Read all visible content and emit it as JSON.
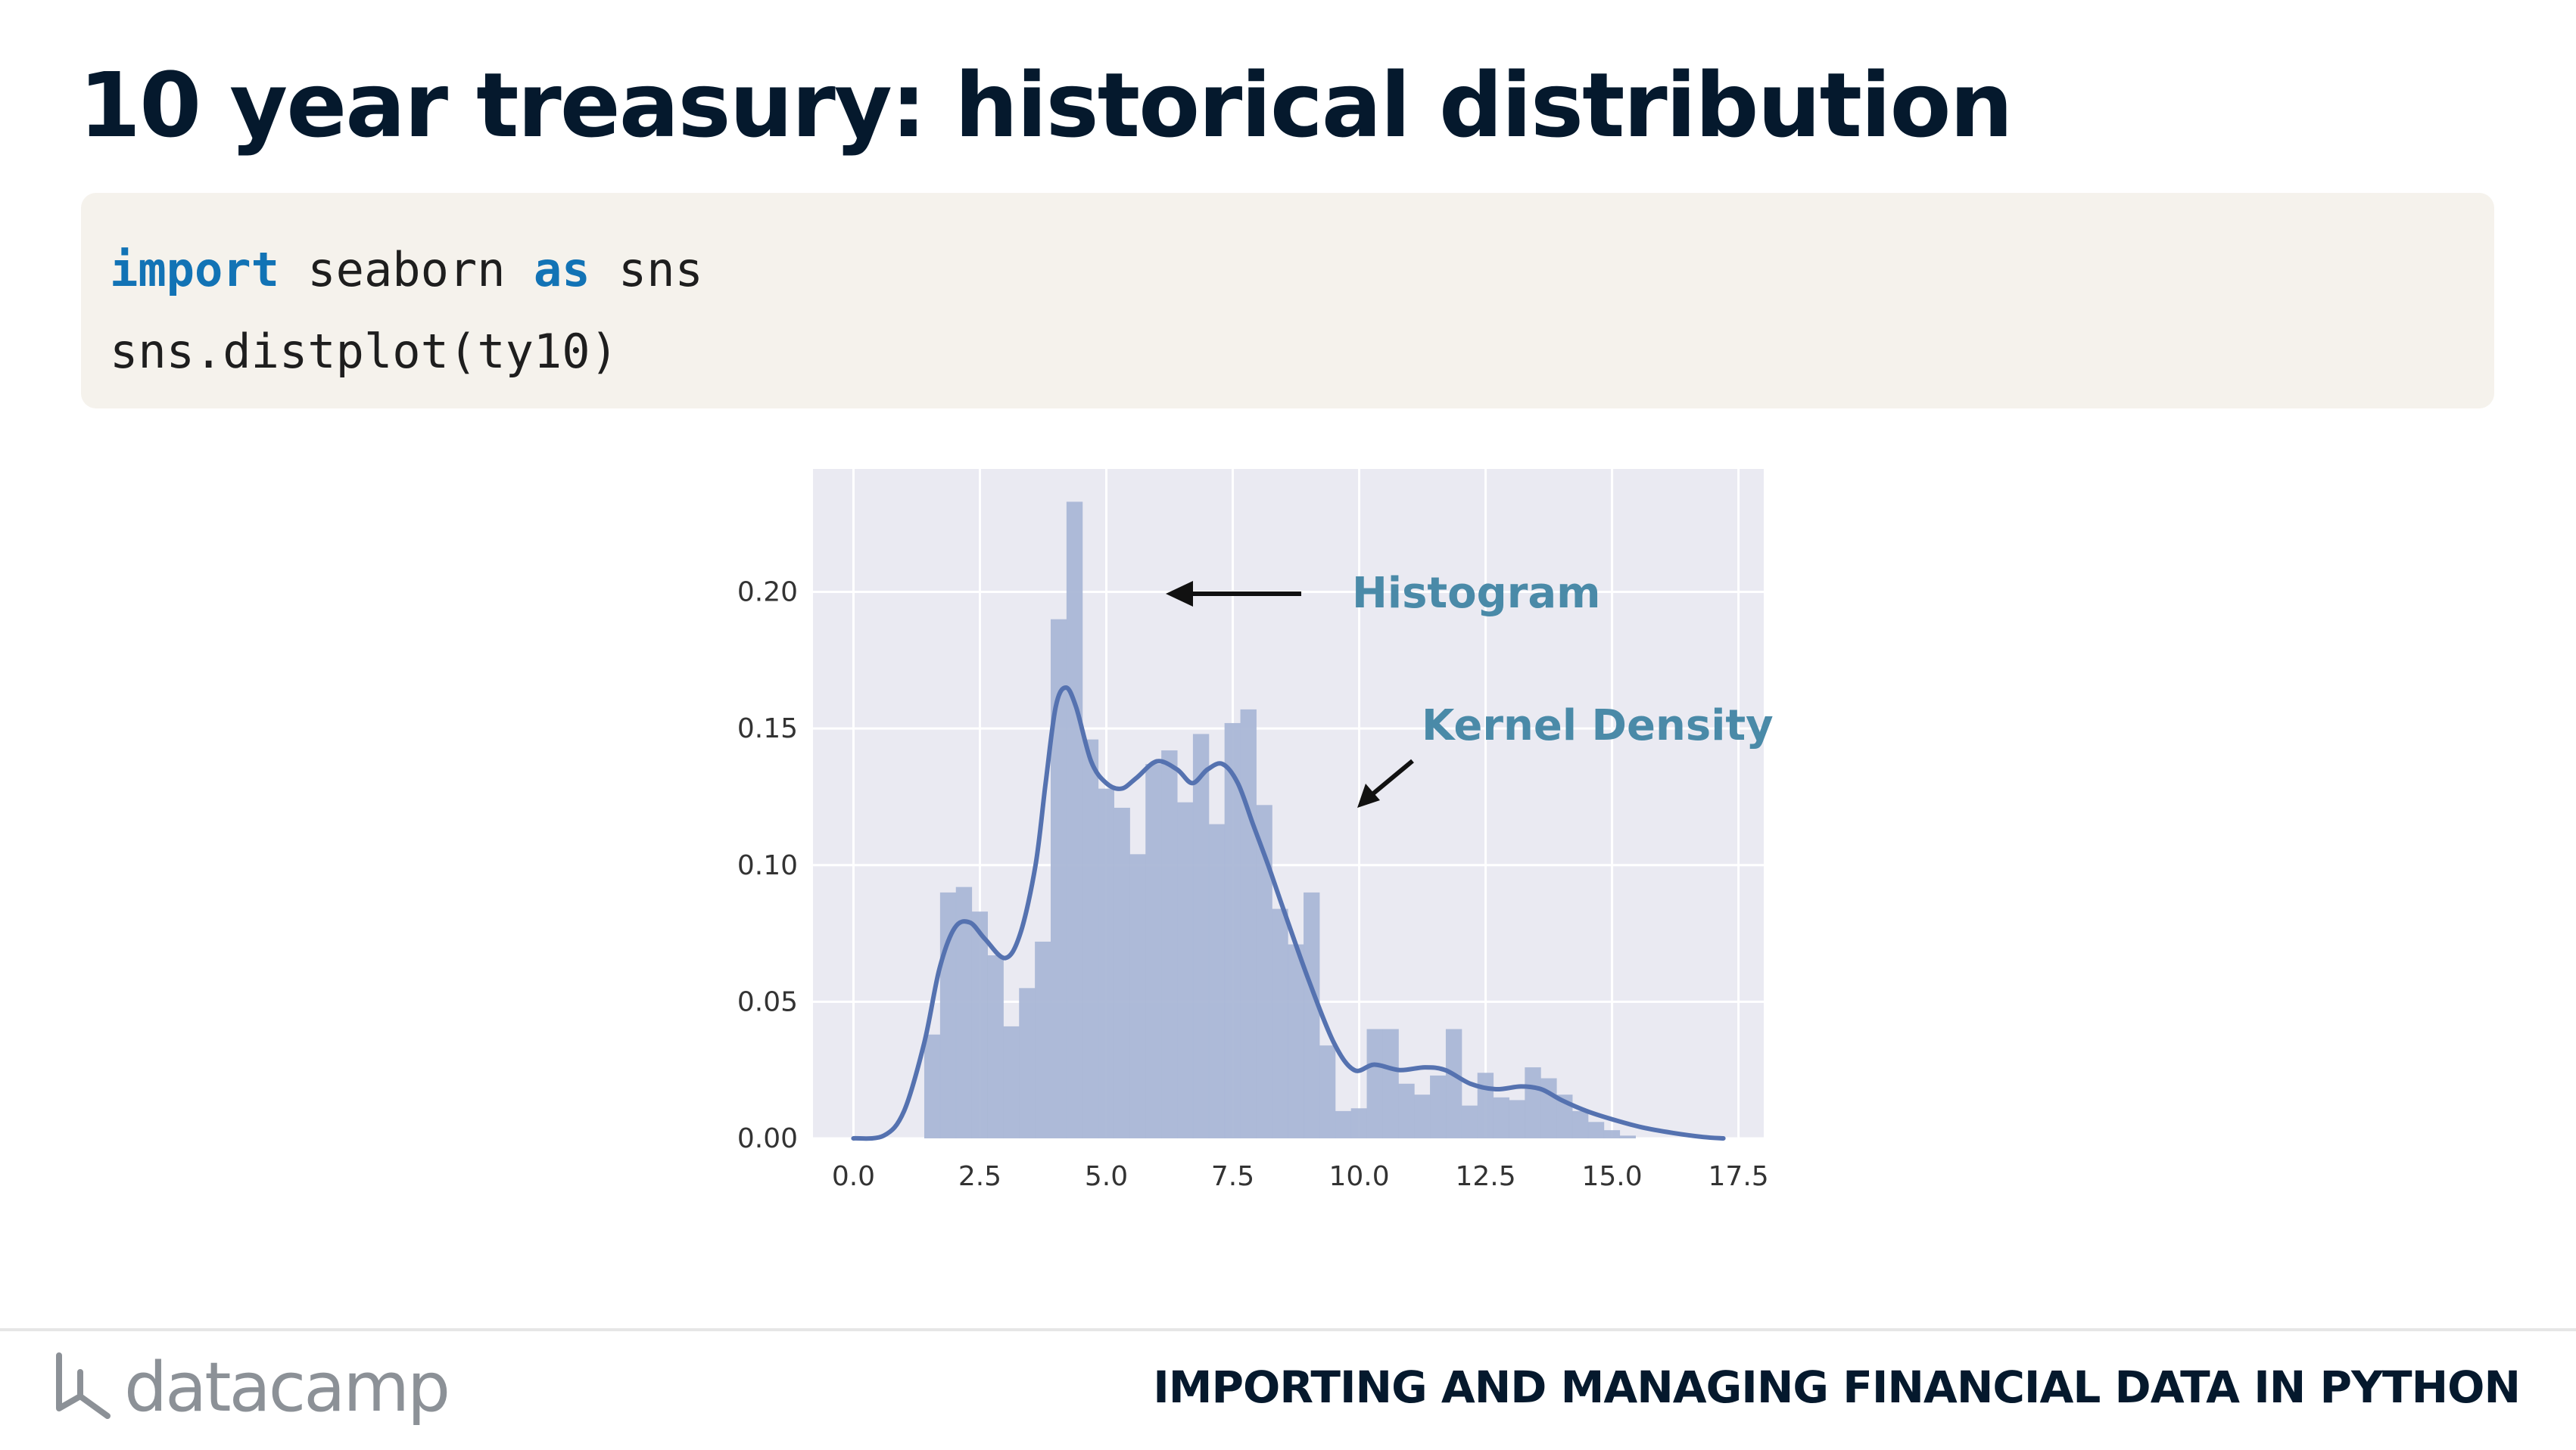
{
  "slide": {
    "title": "10 year treasury: historical distribution",
    "course_title": "IMPORTING AND MANAGING FINANCIAL DATA IN PYTHON",
    "brand": "datacamp"
  },
  "code": {
    "line1": {
      "kw1": "import",
      "mid": " seaborn ",
      "kw2": "as",
      "end": " sns"
    },
    "line2": "sns.distplot(ty10)"
  },
  "colors": {
    "plot_background": "#eaeaf2",
    "histogram_fill": "#aab7d6",
    "kde_line": "#5572b0",
    "annotation": "#4a8aa8",
    "code_keyword": "#1273b5",
    "title": "#05192d"
  },
  "chart_data": {
    "type": "histogram",
    "title": "",
    "xlabel": "",
    "ylabel": "",
    "xlim": [
      -0.8,
      18.0
    ],
    "ylim": [
      0,
      0.245
    ],
    "grid": true,
    "x_ticks": [
      "0.0",
      "2.5",
      "5.0",
      "7.5",
      "10.0",
      "12.5",
      "15.0",
      "17.5"
    ],
    "x_tick_values": [
      0,
      2.5,
      5,
      7.5,
      10,
      12.5,
      15,
      17.5
    ],
    "y_ticks": [
      "0.00",
      "0.05",
      "0.10",
      "0.15",
      "0.20"
    ],
    "y_tick_values": [
      0,
      0.05,
      0.1,
      0.15,
      0.2
    ],
    "histogram": {
      "bin_start": 1.4,
      "bin_width": 0.3125,
      "densities": [
        0.038,
        0.09,
        0.092,
        0.083,
        0.067,
        0.041,
        0.055,
        0.072,
        0.19,
        0.233,
        0.146,
        0.128,
        0.121,
        0.104,
        0.137,
        0.142,
        0.123,
        0.148,
        0.115,
        0.152,
        0.157,
        0.122,
        0.084,
        0.071,
        0.09,
        0.034,
        0.01,
        0.011,
        0.04,
        0.04,
        0.02,
        0.016,
        0.023,
        0.04,
        0.012,
        0.024,
        0.015,
        0.014,
        0.026,
        0.022,
        0.016,
        0.01,
        0.006,
        0.003,
        0.001
      ]
    },
    "kde": {
      "x": [
        0.0,
        0.6,
        1.0,
        1.4,
        1.7,
        2.0,
        2.3,
        2.6,
        3.0,
        3.3,
        3.6,
        3.8,
        4.0,
        4.2,
        4.4,
        4.7,
        5.0,
        5.3,
        5.6,
        6.0,
        6.4,
        6.7,
        7.0,
        7.3,
        7.6,
        7.9,
        8.2,
        8.5,
        9.0,
        9.5,
        9.9,
        10.3,
        10.8,
        11.3,
        11.7,
        12.2,
        12.7,
        13.2,
        13.6,
        14.0,
        14.5,
        15.0,
        15.6,
        16.2,
        16.8,
        17.2
      ],
      "y": [
        0.0,
        0.001,
        0.01,
        0.035,
        0.062,
        0.077,
        0.079,
        0.073,
        0.066,
        0.075,
        0.1,
        0.13,
        0.158,
        0.165,
        0.158,
        0.138,
        0.13,
        0.128,
        0.132,
        0.138,
        0.135,
        0.13,
        0.135,
        0.137,
        0.13,
        0.115,
        0.1,
        0.084,
        0.058,
        0.035,
        0.025,
        0.027,
        0.025,
        0.026,
        0.025,
        0.02,
        0.018,
        0.019,
        0.018,
        0.014,
        0.01,
        0.007,
        0.004,
        0.002,
        0.0005,
        0.0
      ]
    },
    "annotations": [
      {
        "text": "Histogram"
      },
      {
        "text": "Kernel Density"
      }
    ]
  }
}
